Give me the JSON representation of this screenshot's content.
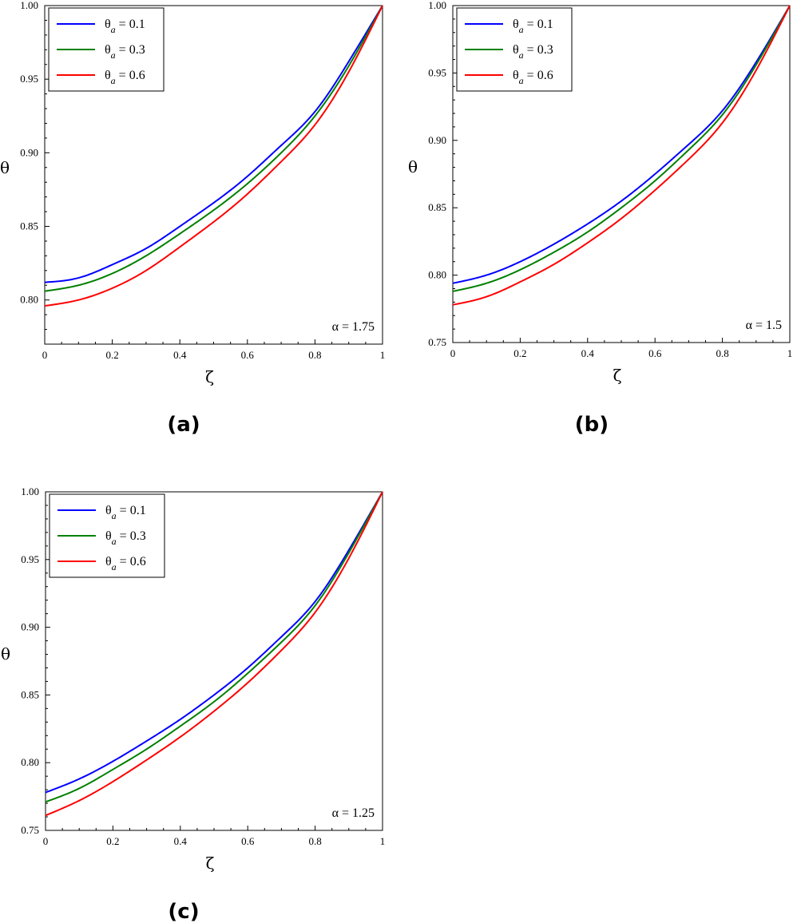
{
  "chart_data": [
    {
      "type": "line",
      "panel_label": "(a)",
      "xlabel": "ζ",
      "ylabel": "θ",
      "annotation": "α = 1.75",
      "xlim": [
        0,
        1
      ],
      "ylim": [
        0.77,
        1.0
      ],
      "x_ticks": [
        "0",
        "0.2",
        "0.4",
        "0.6",
        "0.8",
        "1"
      ],
      "y_ticks": [
        "0.80",
        "0.85",
        "0.90",
        "0.95",
        "1.00"
      ],
      "legend_position": "top-left",
      "x": [
        0,
        0.1,
        0.2,
        0.3,
        0.4,
        0.5,
        0.6,
        0.7,
        0.8,
        0.9,
        1.0
      ],
      "series": [
        {
          "legend_main": "θ",
          "legend_sub": "a",
          "legend_value": " = 0.1",
          "color": "#0000ff",
          "values": [
            0.812,
            0.815,
            0.824,
            0.835,
            0.85,
            0.866,
            0.884,
            0.905,
            0.928,
            0.962,
            1.0
          ]
        },
        {
          "legend_main": "θ",
          "legend_sub": "a",
          "legend_value": " = 0.3",
          "color": "#008000",
          "values": [
            0.806,
            0.81,
            0.818,
            0.83,
            0.845,
            0.861,
            0.879,
            0.9,
            0.925,
            0.959,
            1.0
          ]
        },
        {
          "legend_main": "θ",
          "legend_sub": "a",
          "legend_value": " = 0.6",
          "color": "#ff0000",
          "values": [
            0.796,
            0.8,
            0.808,
            0.82,
            0.836,
            0.853,
            0.872,
            0.894,
            0.919,
            0.955,
            1.0
          ]
        }
      ]
    },
    {
      "type": "line",
      "panel_label": "(b)",
      "xlabel": "ζ",
      "ylabel": "θ",
      "annotation": "α = 1.5",
      "xlim": [
        0,
        1
      ],
      "ylim": [
        0.75,
        1.0
      ],
      "x_ticks": [
        "0",
        "0.2",
        "0.4",
        "0.6",
        "0.8",
        "1"
      ],
      "y_ticks": [
        "0.75",
        "0.80",
        "0.85",
        "0.90",
        "0.95",
        "1.00"
      ],
      "legend_position": "top-left",
      "x": [
        0,
        0.1,
        0.2,
        0.3,
        0.4,
        0.5,
        0.6,
        0.7,
        0.8,
        0.9,
        1.0
      ],
      "series": [
        {
          "legend_main": "θ",
          "legend_sub": "a",
          "legend_value": " = 0.1",
          "color": "#0000ff",
          "values": [
            0.794,
            0.8,
            0.81,
            0.823,
            0.838,
            0.855,
            0.875,
            0.897,
            0.922,
            0.958,
            1.0
          ]
        },
        {
          "legend_main": "θ",
          "legend_sub": "a",
          "legend_value": " = 0.3",
          "color": "#008000",
          "values": [
            0.788,
            0.794,
            0.804,
            0.817,
            0.832,
            0.85,
            0.87,
            0.893,
            0.919,
            0.956,
            1.0
          ]
        },
        {
          "legend_main": "θ",
          "legend_sub": "a",
          "legend_value": " = 0.6",
          "color": "#ff0000",
          "values": [
            0.778,
            0.784,
            0.795,
            0.808,
            0.824,
            0.842,
            0.863,
            0.886,
            0.913,
            0.952,
            1.0
          ]
        }
      ]
    },
    {
      "type": "line",
      "panel_label": "(c)",
      "xlabel": "ζ",
      "ylabel": "θ",
      "annotation": "α = 1.25",
      "xlim": [
        0,
        1
      ],
      "ylim": [
        0.75,
        1.0
      ],
      "x_ticks": [
        "0",
        "0.2",
        "0.4",
        "0.6",
        "0.8",
        "1"
      ],
      "y_ticks": [
        "0.75",
        "0.80",
        "0.85",
        "0.90",
        "0.95",
        "1.00"
      ],
      "legend_position": "top-left",
      "x": [
        0,
        0.1,
        0.2,
        0.3,
        0.4,
        0.5,
        0.6,
        0.7,
        0.8,
        0.9,
        1.0
      ],
      "series": [
        {
          "legend_main": "θ",
          "legend_sub": "a",
          "legend_value": " = 0.1",
          "color": "#0000ff",
          "values": [
            0.778,
            0.788,
            0.801,
            0.816,
            0.832,
            0.85,
            0.87,
            0.893,
            0.919,
            0.957,
            1.0
          ]
        },
        {
          "legend_main": "θ",
          "legend_sub": "a",
          "legend_value": " = 0.3",
          "color": "#008000",
          "values": [
            0.771,
            0.781,
            0.795,
            0.81,
            0.827,
            0.845,
            0.866,
            0.889,
            0.916,
            0.955,
            1.0
          ]
        },
        {
          "legend_main": "θ",
          "legend_sub": "a",
          "legend_value": " = 0.6",
          "color": "#ff0000",
          "values": [
            0.761,
            0.772,
            0.786,
            0.802,
            0.819,
            0.838,
            0.859,
            0.883,
            0.911,
            0.951,
            1.0
          ]
        }
      ]
    }
  ]
}
